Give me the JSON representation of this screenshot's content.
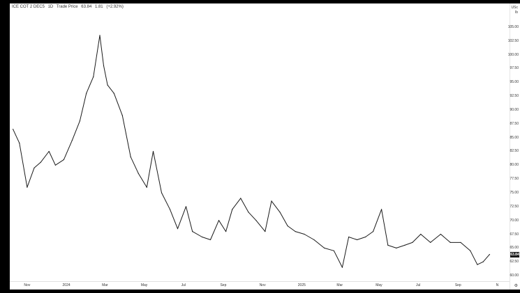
{
  "header": {
    "symbol": "ICE COT 2 DEC5",
    "interval": "1D",
    "price_label": "Trade Price",
    "price": "63.84",
    "change": "1.81",
    "change_pct": "(+2.92%)"
  },
  "unit": {
    "currency": "USc",
    "per": "lb"
  },
  "current_price_tag": "63.84",
  "settings_icon": "gear-icon",
  "chart_data": {
    "type": "line",
    "title": "",
    "xlabel": "",
    "ylabel": "",
    "ylim": [
      59,
      107
    ],
    "y_ticks": [
      "105.00",
      "102.50",
      "100.00",
      "97.50",
      "95.00",
      "92.50",
      "90.00",
      "87.50",
      "85.00",
      "82.50",
      "80.00",
      "77.50",
      "75.00",
      "72.50",
      "70.00",
      "67.50",
      "65.00",
      "62.50",
      "60.00"
    ],
    "x_ticks": [
      "Nov",
      "2024",
      "Mar",
      "May",
      "Jul",
      "Sep",
      "Nov",
      "2025",
      "Mar",
      "May",
      "Jul",
      "Sep",
      "N"
    ],
    "series": [
      {
        "color": "#1a1a1a",
        "x": [
          "2023-10-10",
          "2023-10-20",
          "2023-11-01",
          "2023-11-12",
          "2023-11-22",
          "2023-12-05",
          "2023-12-15",
          "2023-12-28",
          "2024-01-10",
          "2024-01-22",
          "2024-02-01",
          "2024-02-12",
          "2024-02-22",
          "2024-02-28",
          "2024-03-05",
          "2024-03-15",
          "2024-03-28",
          "2024-04-10",
          "2024-04-22",
          "2024-05-05",
          "2024-05-15",
          "2024-05-28",
          "2024-06-10",
          "2024-06-22",
          "2024-07-05",
          "2024-07-15",
          "2024-07-30",
          "2024-08-12",
          "2024-08-25",
          "2024-09-05",
          "2024-09-15",
          "2024-09-28",
          "2024-10-10",
          "2024-10-22",
          "2024-11-05",
          "2024-11-15",
          "2024-11-28",
          "2024-12-10",
          "2024-12-22",
          "2025-01-05",
          "2025-01-20",
          "2025-02-05",
          "2025-02-20",
          "2025-03-05",
          "2025-03-15",
          "2025-03-28",
          "2025-04-10",
          "2025-04-22",
          "2025-05-05",
          "2025-05-15",
          "2025-05-28",
          "2025-06-10",
          "2025-06-22",
          "2025-07-05",
          "2025-07-20",
          "2025-08-05",
          "2025-08-20",
          "2025-09-05",
          "2025-09-20",
          "2025-10-01",
          "2025-10-10",
          "2025-10-20"
        ],
        "y": [
          86.5,
          84.0,
          76.0,
          79.5,
          80.5,
          82.5,
          80.0,
          81.0,
          84.5,
          88.0,
          93.0,
          96.0,
          103.5,
          98.0,
          94.5,
          93.0,
          89.0,
          81.5,
          78.5,
          76.0,
          82.5,
          75.0,
          72.0,
          68.5,
          72.5,
          68.0,
          67.0,
          66.5,
          70.0,
          68.0,
          72.0,
          74.0,
          71.5,
          70.0,
          68.0,
          73.5,
          71.5,
          69.0,
          68.0,
          67.5,
          66.5,
          65.0,
          64.5,
          61.5,
          67.0,
          66.5,
          67.0,
          68.0,
          72.0,
          65.5,
          65.0,
          65.5,
          66.0,
          67.5,
          66.0,
          67.5,
          66.0,
          66.0,
          64.5,
          62.0,
          62.5,
          63.84
        ]
      }
    ]
  }
}
